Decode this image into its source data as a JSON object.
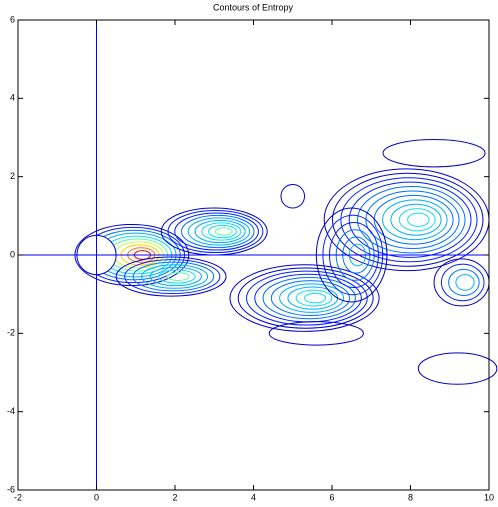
{
  "chart_data": {
    "type": "contour",
    "title": "Contours of Entropy",
    "xlim": [
      -2,
      10
    ],
    "ylim": [
      -6,
      6
    ],
    "xticks": [
      -2,
      0,
      2,
      4,
      6,
      8,
      10
    ],
    "yticks": [
      -6,
      -4,
      -2,
      0,
      2,
      4,
      6
    ],
    "axis_line_color": "#0000ff"
  }
}
